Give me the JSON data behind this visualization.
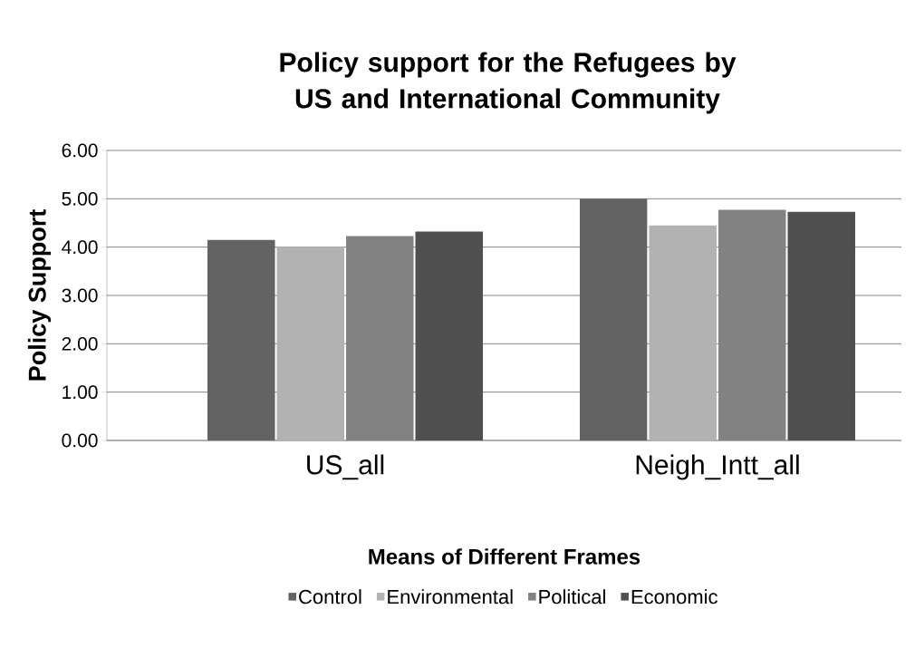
{
  "chart_data": {
    "type": "bar",
    "title": "Policy support for the Refugees by US and International Community",
    "xlabel": "Means of Different Frames",
    "ylabel": "Policy Support",
    "categories": [
      "US_all",
      "Neigh_Intt_all"
    ],
    "series": [
      {
        "name": "Control",
        "color": "#636363",
        "values": [
          4.15,
          5.0
        ]
      },
      {
        "name": "Environmental",
        "color": "#b2b2b2",
        "values": [
          4.01,
          4.45
        ]
      },
      {
        "name": "Political",
        "color": "#828282",
        "values": [
          4.23,
          4.77
        ]
      },
      {
        "name": "Economic",
        "color": "#4f4f4f",
        "values": [
          4.32,
          4.73
        ]
      }
    ],
    "ylim": [
      0,
      6
    ],
    "yticks": [
      {
        "value": 0,
        "label": "0.00"
      },
      {
        "value": 1,
        "label": "1.00"
      },
      {
        "value": 2,
        "label": "2.00"
      },
      {
        "value": 3,
        "label": "3.00"
      },
      {
        "value": 4,
        "label": "4.00"
      },
      {
        "value": 5,
        "label": "5.00"
      },
      {
        "value": 6,
        "label": "6.00"
      }
    ],
    "grid": "y",
    "legend": "bottom"
  }
}
